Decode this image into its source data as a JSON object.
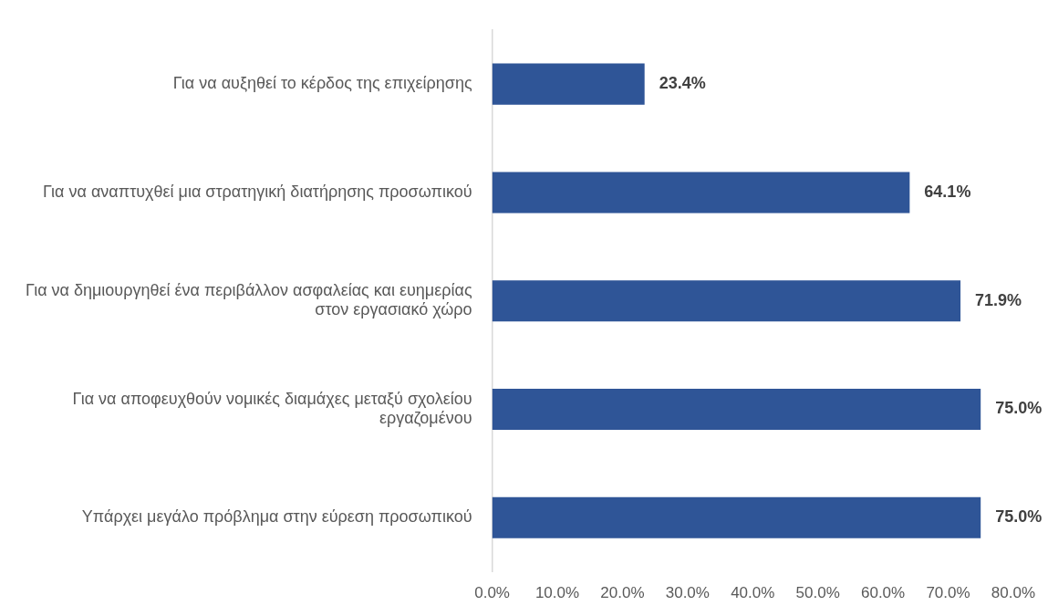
{
  "chart_data": {
    "type": "bar",
    "orientation": "horizontal",
    "categories": [
      "Για να αυξηθεί το κέρδος της επιχείρησης",
      "Για να αναπτυχθεί μια στρατηγική διατήρησης προσωπικού",
      "Για να δημιουργηθεί ένα περιβάλλον ασφαλείας και ευημερίας στον εργασιακό χώρο",
      "Για να αποφευχθούν νομικές διαμάχες μεταξύ σχολείου εργαζομένου",
      "Υπάρχει μεγάλο πρόβλημα στην εύρεση προσωπικού"
    ],
    "values": [
      23.4,
      64.1,
      71.9,
      75.0,
      75.0
    ],
    "value_labels": [
      "23.4%",
      "64.1%",
      "71.9%",
      "75.0%",
      "75.0%"
    ],
    "color": "#2f5597",
    "xlim": [
      0,
      80
    ],
    "xticks": [
      {
        "value": 0,
        "label": "0.0%"
      },
      {
        "value": 10,
        "label": "10.0%"
      },
      {
        "value": 20,
        "label": "20.0%"
      },
      {
        "value": 30,
        "label": "30.0%"
      },
      {
        "value": 40,
        "label": "40.0%"
      },
      {
        "value": 50,
        "label": "50.0%"
      },
      {
        "value": 60,
        "label": "60.0%"
      },
      {
        "value": 70,
        "label": "70.0%"
      },
      {
        "value": 80,
        "label": "80.0%"
      }
    ],
    "grid": false,
    "legend": false
  }
}
